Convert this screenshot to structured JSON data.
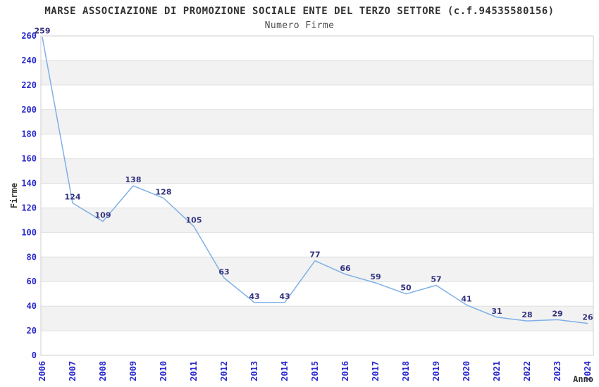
{
  "chart_data": {
    "type": "line",
    "title": "MARSE ASSOCIAZIONE DI PROMOZIONE SOCIALE ENTE DEL TERZO SETTORE (c.f.94535580156)",
    "subtitle": "Numero Firme",
    "xlabel": "Anno",
    "ylabel": "Firme",
    "categories": [
      "2006",
      "2007",
      "2008",
      "2009",
      "2010",
      "2011",
      "2012",
      "2013",
      "2014",
      "2015",
      "2016",
      "2017",
      "2018",
      "2019",
      "2020",
      "2021",
      "2022",
      "2023",
      "2024"
    ],
    "values": [
      259,
      124,
      109,
      138,
      128,
      105,
      63,
      43,
      43,
      77,
      66,
      59,
      50,
      57,
      41,
      31,
      28,
      29,
      26
    ],
    "ylim": [
      0,
      260
    ],
    "ytick_step": 20,
    "grid": "horizontal-bands-alternating",
    "legend": "none",
    "x_tick_rotation": -90,
    "colors": {
      "line": "#7fb0e5",
      "tick_label": "#2a2acc",
      "value_label": "#333380",
      "band_alt": "#f2f2f2",
      "band_base": "#ffffff",
      "grid_line": "#e0e0e0",
      "frame": "#cfcfcf",
      "title": "#333333",
      "subtitle": "#4d4d4d",
      "axis_title": "#333333"
    }
  }
}
